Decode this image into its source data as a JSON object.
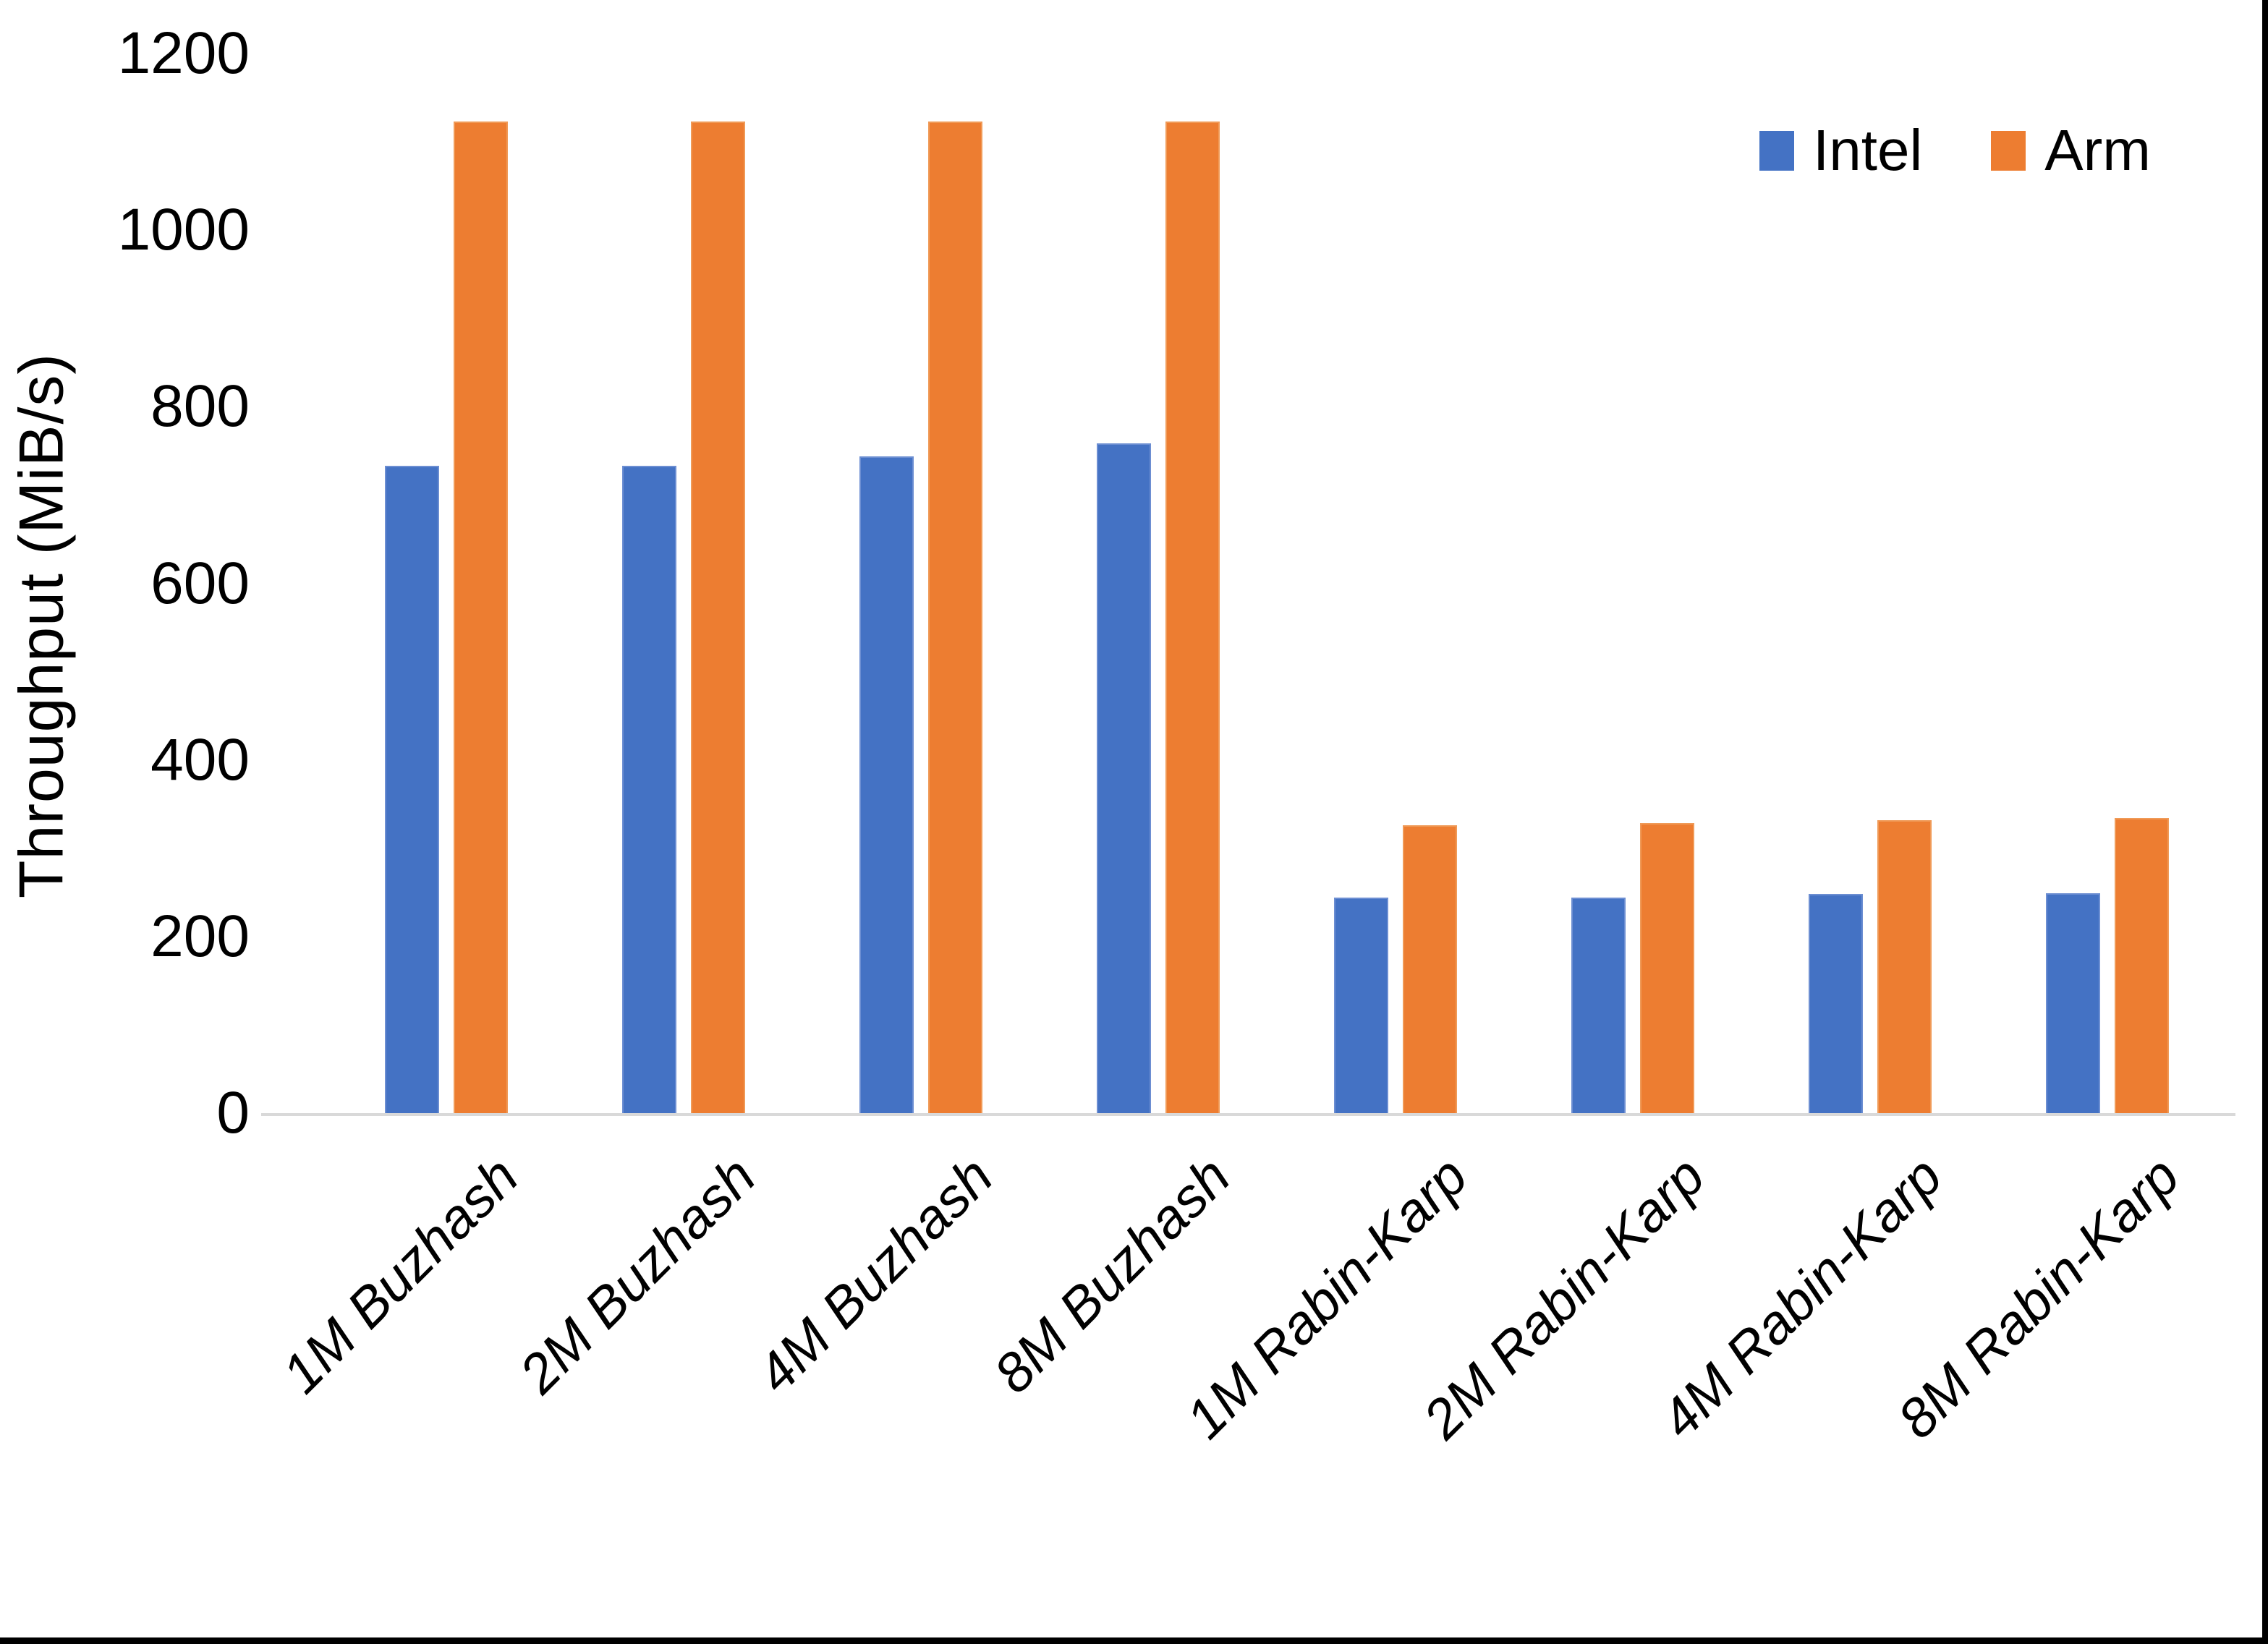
{
  "figure": {
    "background": "#ffffff",
    "frame_border_color": "#000000",
    "axis_line_color": "#d9d9d9",
    "text_color": "#000000"
  },
  "legend": {
    "position": "top-right",
    "items": [
      {
        "label": "Intel",
        "color": "#4472C4"
      },
      {
        "label": "Arm",
        "color": "#ED7D31"
      }
    ]
  },
  "chart_data": {
    "type": "bar",
    "title": "",
    "xlabel": "",
    "ylabel": "Throughput (MiB/s)",
    "ylim": [
      0,
      1200
    ],
    "yticks": [
      0,
      200,
      400,
      600,
      800,
      1000,
      1200
    ],
    "grid": false,
    "legend_position": "top-right",
    "categories": [
      "1M Buzhash",
      "2M Buzhash",
      "4M Buzhash",
      "8M Buzhash",
      "1M Rabin-Karp",
      "2M Rabin-Karp",
      "4M Rabin-Karp",
      "8M Rabin-Karp"
    ],
    "series": [
      {
        "name": "Intel",
        "color": "#4472C4",
        "values": [
          735,
          735,
          745,
          760,
          246,
          246,
          250,
          251
        ]
      },
      {
        "name": "Arm",
        "color": "#ED7D31",
        "values": [
          1125,
          1125,
          1125,
          1125,
          328,
          330,
          333,
          336
        ]
      }
    ]
  }
}
